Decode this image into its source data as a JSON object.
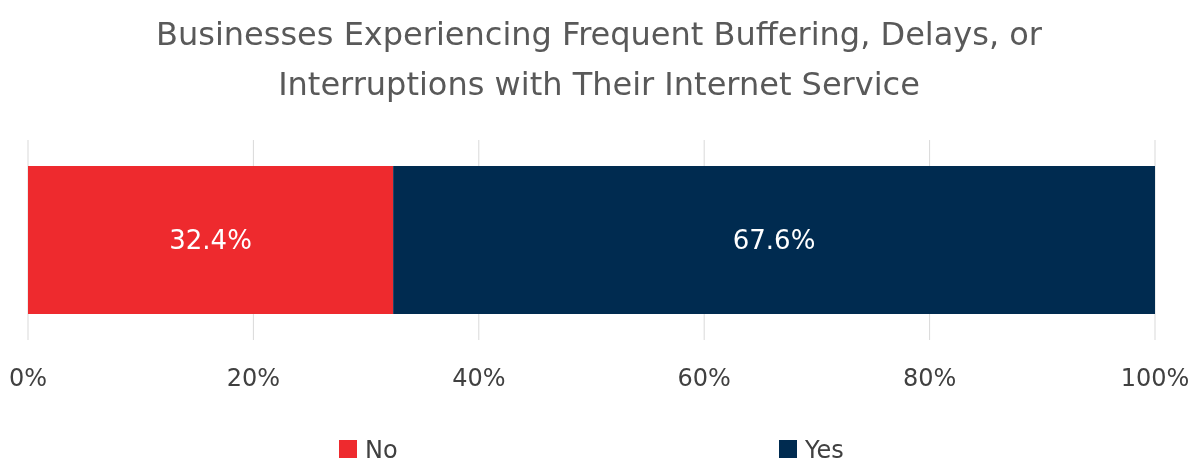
{
  "chart_data": {
    "type": "bar",
    "orientation": "horizontal",
    "stacked": true,
    "title": "Businesses Experiencing Frequent Buffering, Delays, or Interruptions with Their Internet Service",
    "categories": [
      null
    ],
    "series": [
      {
        "name": "No",
        "color": "#ee2a2e",
        "values": [
          32.4
        ],
        "value_labels": [
          "32.4%"
        ]
      },
      {
        "name": "Yes",
        "color": "#002b50",
        "values": [
          67.6
        ],
        "value_labels": [
          "67.6%"
        ]
      }
    ],
    "xlim": [
      0,
      100
    ],
    "xticks": [
      {
        "value": 0,
        "label": "0%"
      },
      {
        "value": 20,
        "label": "20%"
      },
      {
        "value": 40,
        "label": "40%"
      },
      {
        "value": 60,
        "label": "60%"
      },
      {
        "value": 80,
        "label": "80%"
      },
      {
        "value": 100,
        "label": "100%"
      }
    ],
    "grid": "x",
    "legend": "bottom"
  }
}
